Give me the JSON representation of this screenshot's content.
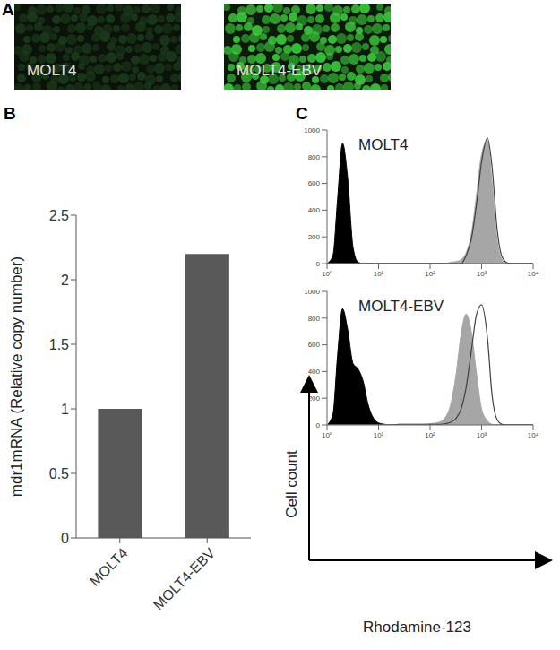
{
  "chart_data": [
    {
      "type": "image",
      "panel_label": "A",
      "labels": [
        "MOLT4",
        "MOLT4-EBV"
      ]
    },
    {
      "type": "bar",
      "panel_label": "B",
      "categories": [
        "MOLT4",
        "MOLT4-EBV"
      ],
      "values": [
        1,
        2.2
      ],
      "color": "#595959",
      "ylim": [
        0,
        2.5
      ],
      "yticks": [
        0,
        0.5,
        1,
        1.5,
        2,
        2.5
      ],
      "y_label": "mdr1mRNA  (Relative copy number)"
    },
    {
      "type": "area",
      "panel_label": "C",
      "title": "MOLT4",
      "log": "x",
      "x": [
        1,
        1.3,
        1.6,
        2,
        2.5,
        3.2,
        4,
        5,
        6.3,
        8,
        10,
        13,
        16,
        20,
        25,
        32,
        40,
        50,
        63,
        80,
        100,
        130,
        160,
        200,
        250,
        320,
        400,
        500,
        630,
        800,
        1000,
        1300,
        1600,
        2000,
        2500,
        3200,
        4000,
        5000,
        6300,
        8000,
        10000
      ],
      "xlim": [
        1,
        10000
      ],
      "xticks": [
        {
          "value": 1,
          "label": "10⁰"
        },
        {
          "value": 10,
          "label": "10¹"
        },
        {
          "value": 100,
          "label": "10²"
        },
        {
          "value": 1000,
          "label": "10³"
        },
        {
          "value": 10000,
          "label": "10⁴"
        }
      ],
      "ylim": [
        0,
        1000
      ],
      "yticks": [
        0,
        200,
        400,
        600,
        800,
        1000
      ],
      "series": [
        {
          "type": "area",
          "color": "#000000",
          "values": [
            0,
            60,
            480,
            900,
            650,
            120,
            10,
            0,
            0,
            0,
            0,
            0,
            0,
            0,
            0,
            0,
            0,
            0,
            0,
            0,
            0,
            0,
            0,
            0,
            0,
            0,
            0,
            0,
            0,
            0,
            0,
            0,
            0,
            0,
            0,
            0,
            0,
            0,
            0,
            0,
            0
          ]
        },
        {
          "type": "area",
          "color": "#a6a6a6",
          "values": [
            0,
            0,
            0,
            0,
            0,
            0,
            0,
            0,
            0,
            0,
            0,
            0,
            0,
            0,
            0,
            0,
            0,
            0,
            0,
            0,
            0,
            0,
            0,
            0,
            10,
            15,
            30,
            80,
            220,
            520,
            820,
            920,
            600,
            180,
            30,
            0,
            0,
            0,
            0,
            0,
            0
          ]
        },
        {
          "type": "line",
          "color": "#404040",
          "values": [
            0,
            0,
            0,
            0,
            0,
            0,
            0,
            0,
            0,
            0,
            0,
            0,
            0,
            0,
            0,
            0,
            0,
            0,
            0,
            0,
            0,
            0,
            0,
            0,
            0,
            0,
            0,
            60,
            180,
            450,
            760,
            940,
            720,
            260,
            50,
            5,
            0,
            0,
            0,
            0,
            0
          ]
        }
      ]
    },
    {
      "type": "area",
      "title": "MOLT4-EBV",
      "log": "x",
      "x_label": "Rhodamine-123",
      "y_label": "Cell count",
      "x": [
        1,
        1.3,
        1.6,
        2,
        2.5,
        3.2,
        4,
        5,
        6.3,
        8,
        10,
        13,
        16,
        20,
        25,
        32,
        40,
        50,
        63,
        80,
        100,
        130,
        160,
        200,
        250,
        320,
        400,
        500,
        630,
        800,
        1000,
        1300,
        1600,
        2000,
        2500,
        3200,
        4000,
        5000,
        6300,
        8000,
        10000
      ],
      "xlim": [
        1,
        10000
      ],
      "xticks": [
        {
          "value": 1,
          "label": "10⁰"
        },
        {
          "value": 10,
          "label": "10¹"
        },
        {
          "value": 100,
          "label": "10²"
        },
        {
          "value": 1000,
          "label": "10³"
        },
        {
          "value": 10000,
          "label": "10⁴"
        }
      ],
      "ylim": [
        0,
        1000
      ],
      "yticks": [
        0,
        200,
        400,
        600,
        800,
        1000
      ],
      "series": [
        {
          "type": "area",
          "color": "#000000",
          "values": [
            0,
            80,
            520,
            870,
            720,
            460,
            420,
            330,
            150,
            50,
            15,
            5,
            0,
            0,
            0,
            0,
            0,
            0,
            0,
            0,
            0,
            0,
            0,
            0,
            0,
            0,
            0,
            0,
            0,
            0,
            0,
            0,
            0,
            0,
            0,
            0,
            0,
            0,
            0,
            0,
            0
          ]
        },
        {
          "type": "area",
          "color": "#a6a6a6",
          "values": [
            0,
            0,
            0,
            0,
            0,
            0,
            0,
            0,
            0,
            0,
            0,
            0,
            0,
            0,
            5,
            5,
            5,
            5,
            5,
            5,
            10,
            15,
            25,
            60,
            150,
            380,
            680,
            830,
            700,
            380,
            120,
            30,
            5,
            0,
            0,
            0,
            0,
            0,
            0,
            0,
            0
          ]
        },
        {
          "type": "line",
          "color": "#404040",
          "values": [
            0,
            0,
            0,
            0,
            0,
            0,
            0,
            0,
            0,
            0,
            0,
            0,
            0,
            0,
            5,
            5,
            5,
            5,
            5,
            5,
            5,
            5,
            5,
            10,
            20,
            50,
            120,
            280,
            550,
            830,
            900,
            650,
            220,
            40,
            5,
            0,
            0,
            0,
            0,
            0,
            0
          ]
        }
      ]
    }
  ]
}
